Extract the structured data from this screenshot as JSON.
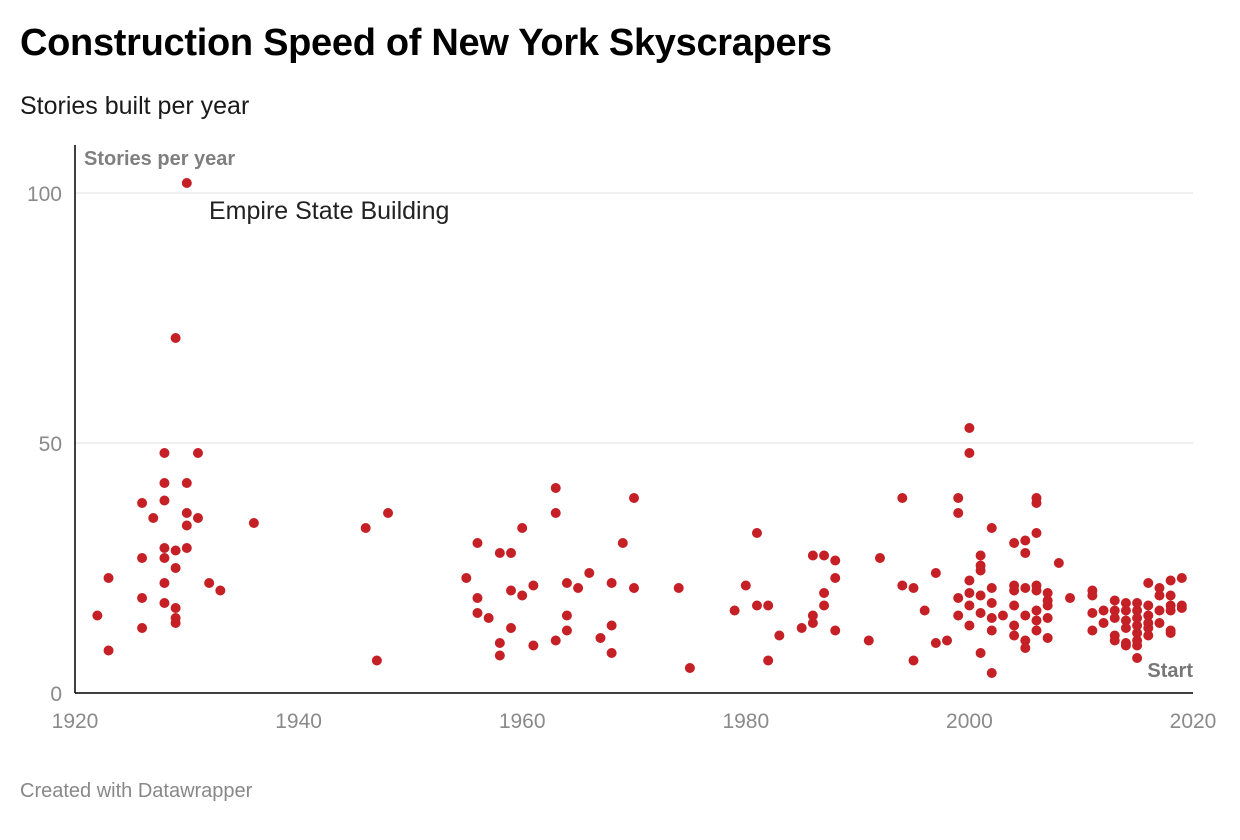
{
  "header": {
    "title": "Construction Speed of New York Skyscrapers",
    "subtitle": "Stories built per year"
  },
  "footer": {
    "credit": "Created with Datawrapper"
  },
  "colors": {
    "point": "#c42026",
    "grid": "#e2e2e2",
    "axis": "#000000"
  },
  "chart_data": {
    "type": "scatter",
    "title": "Construction Speed of New York Skyscrapers",
    "subtitle": "Stories built per year",
    "ylabel": "Stories per year",
    "xlabel": "",
    "xlim": [
      1920,
      2020
    ],
    "ylim": [
      0,
      110
    ],
    "x_ticks": [
      1920,
      1940,
      1960,
      1980,
      2000,
      2020
    ],
    "y_ticks": [
      0,
      50,
      100
    ],
    "grid": "horizontal",
    "annotations": [
      {
        "text": "Empire State Building",
        "x": 1930,
        "y": 102
      },
      {
        "text": "Start",
        "x": 2020,
        "y": 0
      }
    ],
    "series": [
      {
        "points": [
          [
            1922,
            15.5
          ],
          [
            1923,
            23
          ],
          [
            1923,
            8.5
          ],
          [
            1926,
            38
          ],
          [
            1926,
            27
          ],
          [
            1926,
            19
          ],
          [
            1926,
            13
          ],
          [
            1927,
            35
          ],
          [
            1928,
            48
          ],
          [
            1928,
            42
          ],
          [
            1928,
            38.5
          ],
          [
            1928,
            29
          ],
          [
            1928,
            27
          ],
          [
            1928,
            22
          ],
          [
            1928,
            18
          ],
          [
            1929,
            71
          ],
          [
            1929,
            28.5
          ],
          [
            1929,
            25
          ],
          [
            1929,
            17
          ],
          [
            1929,
            15
          ],
          [
            1929,
            14
          ],
          [
            1930,
            102
          ],
          [
            1930,
            42
          ],
          [
            1930,
            36
          ],
          [
            1930,
            33.5
          ],
          [
            1930,
            29
          ],
          [
            1931,
            48
          ],
          [
            1931,
            35
          ],
          [
            1932,
            22
          ],
          [
            1933,
            20.5
          ],
          [
            1936,
            34
          ],
          [
            1946,
            33
          ],
          [
            1947,
            6.5
          ],
          [
            1948,
            36
          ],
          [
            1955,
            23
          ],
          [
            1956,
            30
          ],
          [
            1956,
            19
          ],
          [
            1956,
            16
          ],
          [
            1957,
            15
          ],
          [
            1958,
            28
          ],
          [
            1958,
            10
          ],
          [
            1958,
            7.5
          ],
          [
            1959,
            28
          ],
          [
            1959,
            20.5
          ],
          [
            1959,
            13
          ],
          [
            1960,
            33
          ],
          [
            1960,
            19.5
          ],
          [
            1961,
            21.5
          ],
          [
            1961,
            9.5
          ],
          [
            1963,
            41
          ],
          [
            1963,
            36
          ],
          [
            1963,
            10.5
          ],
          [
            1964,
            22
          ],
          [
            1964,
            15.5
          ],
          [
            1964,
            12.5
          ],
          [
            1965,
            21
          ],
          [
            1966,
            24
          ],
          [
            1967,
            11
          ],
          [
            1968,
            22
          ],
          [
            1968,
            13.5
          ],
          [
            1968,
            8
          ],
          [
            1969,
            30
          ],
          [
            1970,
            39
          ],
          [
            1970,
            21
          ],
          [
            1974,
            21
          ],
          [
            1975,
            5
          ],
          [
            1979,
            16.5
          ],
          [
            1980,
            21.5
          ],
          [
            1981,
            32
          ],
          [
            1981,
            17.5
          ],
          [
            1982,
            17.5
          ],
          [
            1982,
            6.5
          ],
          [
            1983,
            11.5
          ],
          [
            1985,
            13
          ],
          [
            1986,
            27.5
          ],
          [
            1986,
            15.5
          ],
          [
            1986,
            14
          ],
          [
            1987,
            27.5
          ],
          [
            1987,
            20
          ],
          [
            1987,
            17.5
          ],
          [
            1988,
            26.5
          ],
          [
            1988,
            23
          ],
          [
            1988,
            12.5
          ],
          [
            1991,
            10.5
          ],
          [
            1992,
            27
          ],
          [
            1994,
            39
          ],
          [
            1994,
            21.5
          ],
          [
            1995,
            21
          ],
          [
            1995,
            6.5
          ],
          [
            1996,
            16.5
          ],
          [
            1997,
            24
          ],
          [
            1997,
            10
          ],
          [
            1998,
            10.5
          ],
          [
            1999,
            39
          ],
          [
            1999,
            36
          ],
          [
            1999,
            19
          ],
          [
            1999,
            15.5
          ],
          [
            2000,
            53
          ],
          [
            2000,
            48
          ],
          [
            2000,
            22.5
          ],
          [
            2000,
            20
          ],
          [
            2000,
            17.5
          ],
          [
            2000,
            13.5
          ],
          [
            2001,
            27.5
          ],
          [
            2001,
            25.5
          ],
          [
            2001,
            24.5
          ],
          [
            2001,
            19.5
          ],
          [
            2001,
            16
          ],
          [
            2001,
            8
          ],
          [
            2002,
            33
          ],
          [
            2002,
            21
          ],
          [
            2002,
            18
          ],
          [
            2002,
            15
          ],
          [
            2002,
            12.5
          ],
          [
            2002,
            4
          ],
          [
            2003,
            15.5
          ],
          [
            2004,
            30
          ],
          [
            2004,
            21.5
          ],
          [
            2004,
            20.5
          ],
          [
            2004,
            17.5
          ],
          [
            2004,
            13.5
          ],
          [
            2004,
            11.5
          ],
          [
            2005,
            30.5
          ],
          [
            2005,
            28
          ],
          [
            2005,
            21
          ],
          [
            2005,
            15.5
          ],
          [
            2005,
            10.5
          ],
          [
            2005,
            9
          ],
          [
            2006,
            39
          ],
          [
            2006,
            38
          ],
          [
            2006,
            32
          ],
          [
            2006,
            21.5
          ],
          [
            2006,
            20.5
          ],
          [
            2006,
            16.5
          ],
          [
            2006,
            14.5
          ],
          [
            2006,
            12.5
          ],
          [
            2007,
            20
          ],
          [
            2007,
            18.5
          ],
          [
            2007,
            17.5
          ],
          [
            2007,
            15
          ],
          [
            2007,
            11
          ],
          [
            2008,
            26
          ],
          [
            2009,
            19
          ],
          [
            2011,
            20.5
          ],
          [
            2011,
            19.5
          ],
          [
            2011,
            16
          ],
          [
            2011,
            12.5
          ],
          [
            2012,
            16.5
          ],
          [
            2012,
            14
          ],
          [
            2013,
            18.5
          ],
          [
            2013,
            16.5
          ],
          [
            2013,
            15
          ],
          [
            2013,
            11.5
          ],
          [
            2013,
            10.5
          ],
          [
            2014,
            18
          ],
          [
            2014,
            16.5
          ],
          [
            2014,
            14.5
          ],
          [
            2014,
            13
          ],
          [
            2014,
            10
          ],
          [
            2014,
            9.5
          ],
          [
            2015,
            18
          ],
          [
            2015,
            16.5
          ],
          [
            2015,
            15
          ],
          [
            2015,
            13.5
          ],
          [
            2015,
            12
          ],
          [
            2015,
            10.5
          ],
          [
            2015,
            9.5
          ],
          [
            2015,
            7
          ],
          [
            2016,
            22
          ],
          [
            2016,
            17.5
          ],
          [
            2016,
            15.5
          ],
          [
            2016,
            14
          ],
          [
            2016,
            13
          ],
          [
            2016,
            11.5
          ],
          [
            2017,
            21
          ],
          [
            2017,
            19.5
          ],
          [
            2017,
            16.5
          ],
          [
            2017,
            14
          ],
          [
            2018,
            22.5
          ],
          [
            2018,
            19.5
          ],
          [
            2018,
            17.5
          ],
          [
            2018,
            16.5
          ],
          [
            2018,
            12.5
          ],
          [
            2018,
            12
          ],
          [
            2019,
            23
          ],
          [
            2019,
            17.5
          ],
          [
            2019,
            17
          ]
        ]
      }
    ]
  }
}
